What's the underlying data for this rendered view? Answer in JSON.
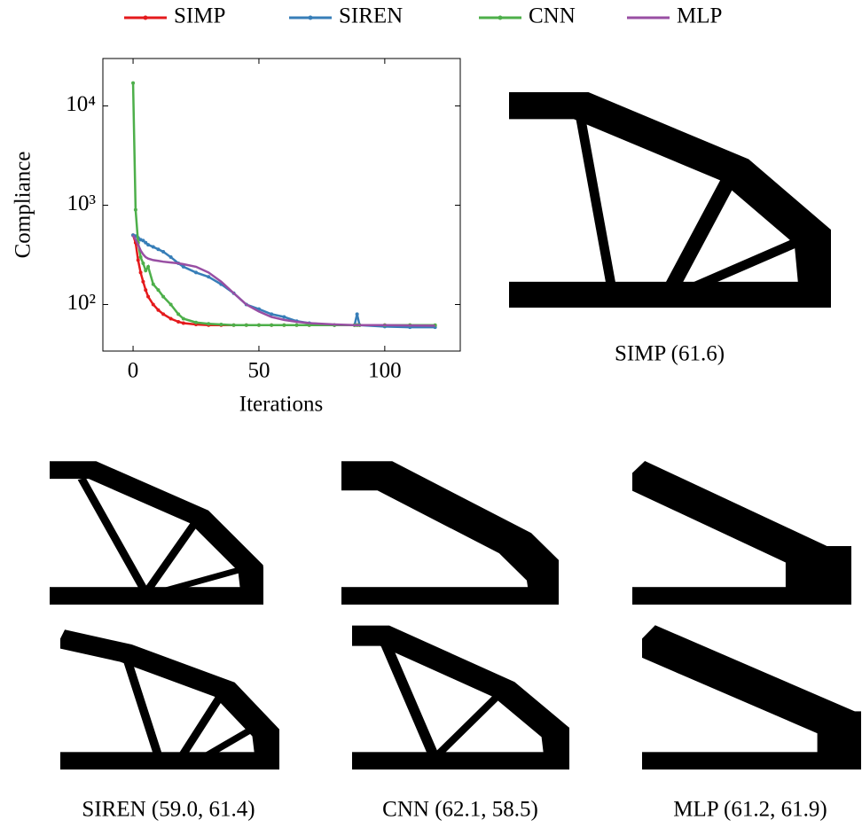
{
  "chart_data": {
    "type": "line",
    "log_y": true,
    "x_label": "Iterations",
    "y_label": "Compliance",
    "x": [
      0,
      1,
      2,
      3,
      4,
      5,
      6,
      8,
      10,
      12,
      15,
      18,
      20,
      25,
      30,
      35,
      40,
      45,
      50,
      55,
      60,
      65,
      70,
      80,
      88,
      89,
      90,
      100,
      110,
      120
    ],
    "series": [
      {
        "name": "SIMP",
        "color": "#e41a1c",
        "markers": true,
        "values": [
          500,
          420,
          280,
          210,
          170,
          140,
          120,
          100,
          88,
          80,
          72,
          67,
          65,
          63,
          62,
          62,
          62,
          62,
          62,
          62,
          62,
          62,
          62,
          62,
          62,
          62,
          62,
          62,
          62,
          61.6
        ]
      },
      {
        "name": "SIREN",
        "color": "#377eb8",
        "markers": true,
        "values": [
          500,
          490,
          470,
          450,
          440,
          420,
          400,
          380,
          360,
          340,
          300,
          260,
          240,
          210,
          190,
          160,
          130,
          100,
          90,
          80,
          75,
          68,
          65,
          62,
          62,
          80,
          62,
          60,
          59,
          59
        ]
      },
      {
        "name": "CNN",
        "color": "#4daf4a",
        "markers": true,
        "values": [
          17000,
          900,
          420,
          300,
          260,
          220,
          240,
          160,
          140,
          120,
          100,
          80,
          72,
          66,
          64,
          63,
          62,
          62,
          62,
          62,
          62,
          62,
          62,
          62,
          62,
          62,
          62,
          62,
          62,
          62.1
        ]
      },
      {
        "name": "MLP",
        "color": "#984ea3",
        "markers": false,
        "values": [
          500,
          450,
          400,
          350,
          320,
          300,
          290,
          280,
          275,
          270,
          265,
          260,
          255,
          240,
          210,
          170,
          130,
          100,
          85,
          75,
          70,
          67,
          65,
          63,
          62,
          62,
          62,
          62,
          61.5,
          61.2
        ]
      }
    ],
    "xlim": [
      -12,
      130
    ],
    "xticks": [
      0,
      50,
      100
    ],
    "ylim": [
      34,
      30000
    ],
    "yticks": [
      {
        "value": 100,
        "label": "10²"
      },
      {
        "value": 1000,
        "label": "10³"
      },
      {
        "value": 10000,
        "label": "10⁴"
      }
    ],
    "legend": "top"
  },
  "panels": [
    {
      "caption": "SIMP (61.6)"
    },
    {
      "caption": "SIREN (59.0, 61.4)"
    },
    {
      "caption": "CNN (62.1, 58.5)"
    },
    {
      "caption": "MLP (61.2, 61.9)"
    }
  ]
}
